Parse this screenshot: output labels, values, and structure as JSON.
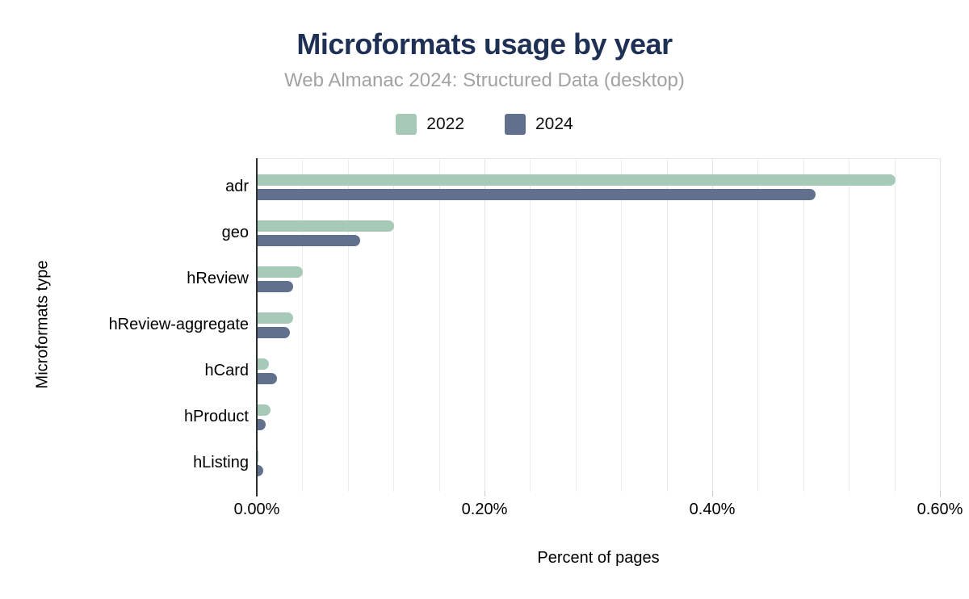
{
  "page": {
    "background": "#ffffff"
  },
  "chart_data": {
    "type": "bar",
    "orientation": "horizontal",
    "title": "Microformats usage by year",
    "subtitle": "Web Almanac 2024: Structured Data (desktop)",
    "xlabel": "Percent of pages",
    "ylabel": "Microformats type",
    "categories": [
      "adr",
      "geo",
      "hReview",
      "hReview-aggregate",
      "hCard",
      "hProduct",
      "hListing"
    ],
    "series": [
      {
        "name": "2022",
        "color": "#a6cab7",
        "values": [
          0.56,
          0.12,
          0.04,
          0.031,
          0.01,
          0.011,
          0.001
        ]
      },
      {
        "name": "2024",
        "color": "#60708d",
        "values": [
          0.49,
          0.09,
          0.031,
          0.028,
          0.017,
          0.007,
          0.005
        ]
      }
    ],
    "xlim": [
      0,
      0.6
    ],
    "x_ticks": {
      "values": [
        0,
        0.2,
        0.4,
        0.6
      ],
      "labels": [
        "0.00%",
        "0.20%",
        "0.40%",
        "0.60%"
      ]
    },
    "minor_grid_step": 0.04,
    "value_unit": "percent of pages",
    "grid": "vertical-on",
    "legend_position": "top-center"
  },
  "colors": {
    "title": "#1e3054",
    "subtitle": "#a2a2a2",
    "axis_line": "#2e2e2e",
    "gridline": "#ececec",
    "text": "#000000",
    "series_2022": "#a6cab7",
    "series_2024": "#60708d"
  }
}
